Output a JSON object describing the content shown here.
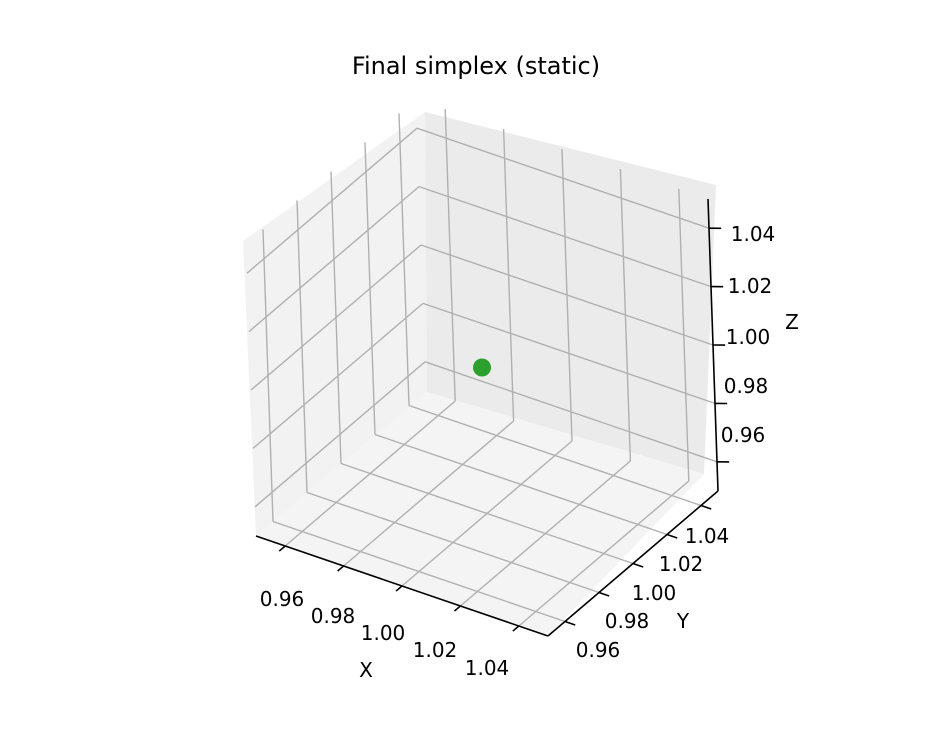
{
  "chart_data": {
    "type": "scatter",
    "projection": "3d",
    "title": "Final simplex (static)",
    "xlabel": "X",
    "ylabel": "Y",
    "zlabel": "Z",
    "xlim": [
      0.95,
      1.05
    ],
    "ylim": [
      0.95,
      1.05
    ],
    "zlim": [
      0.95,
      1.05
    ],
    "xticks": [
      "0.96",
      "0.98",
      "1.00",
      "1.02",
      "1.04"
    ],
    "yticks": [
      "0.96",
      "0.98",
      "1.00",
      "1.02",
      "1.04"
    ],
    "zticks": [
      "0.96",
      "0.98",
      "1.00",
      "1.02",
      "1.04"
    ],
    "grid": true,
    "series": [
      {
        "points": [
          {
            "x": 1.0,
            "y": 1.0,
            "z": 1.0
          }
        ],
        "color": "#2ca02c"
      }
    ]
  }
}
